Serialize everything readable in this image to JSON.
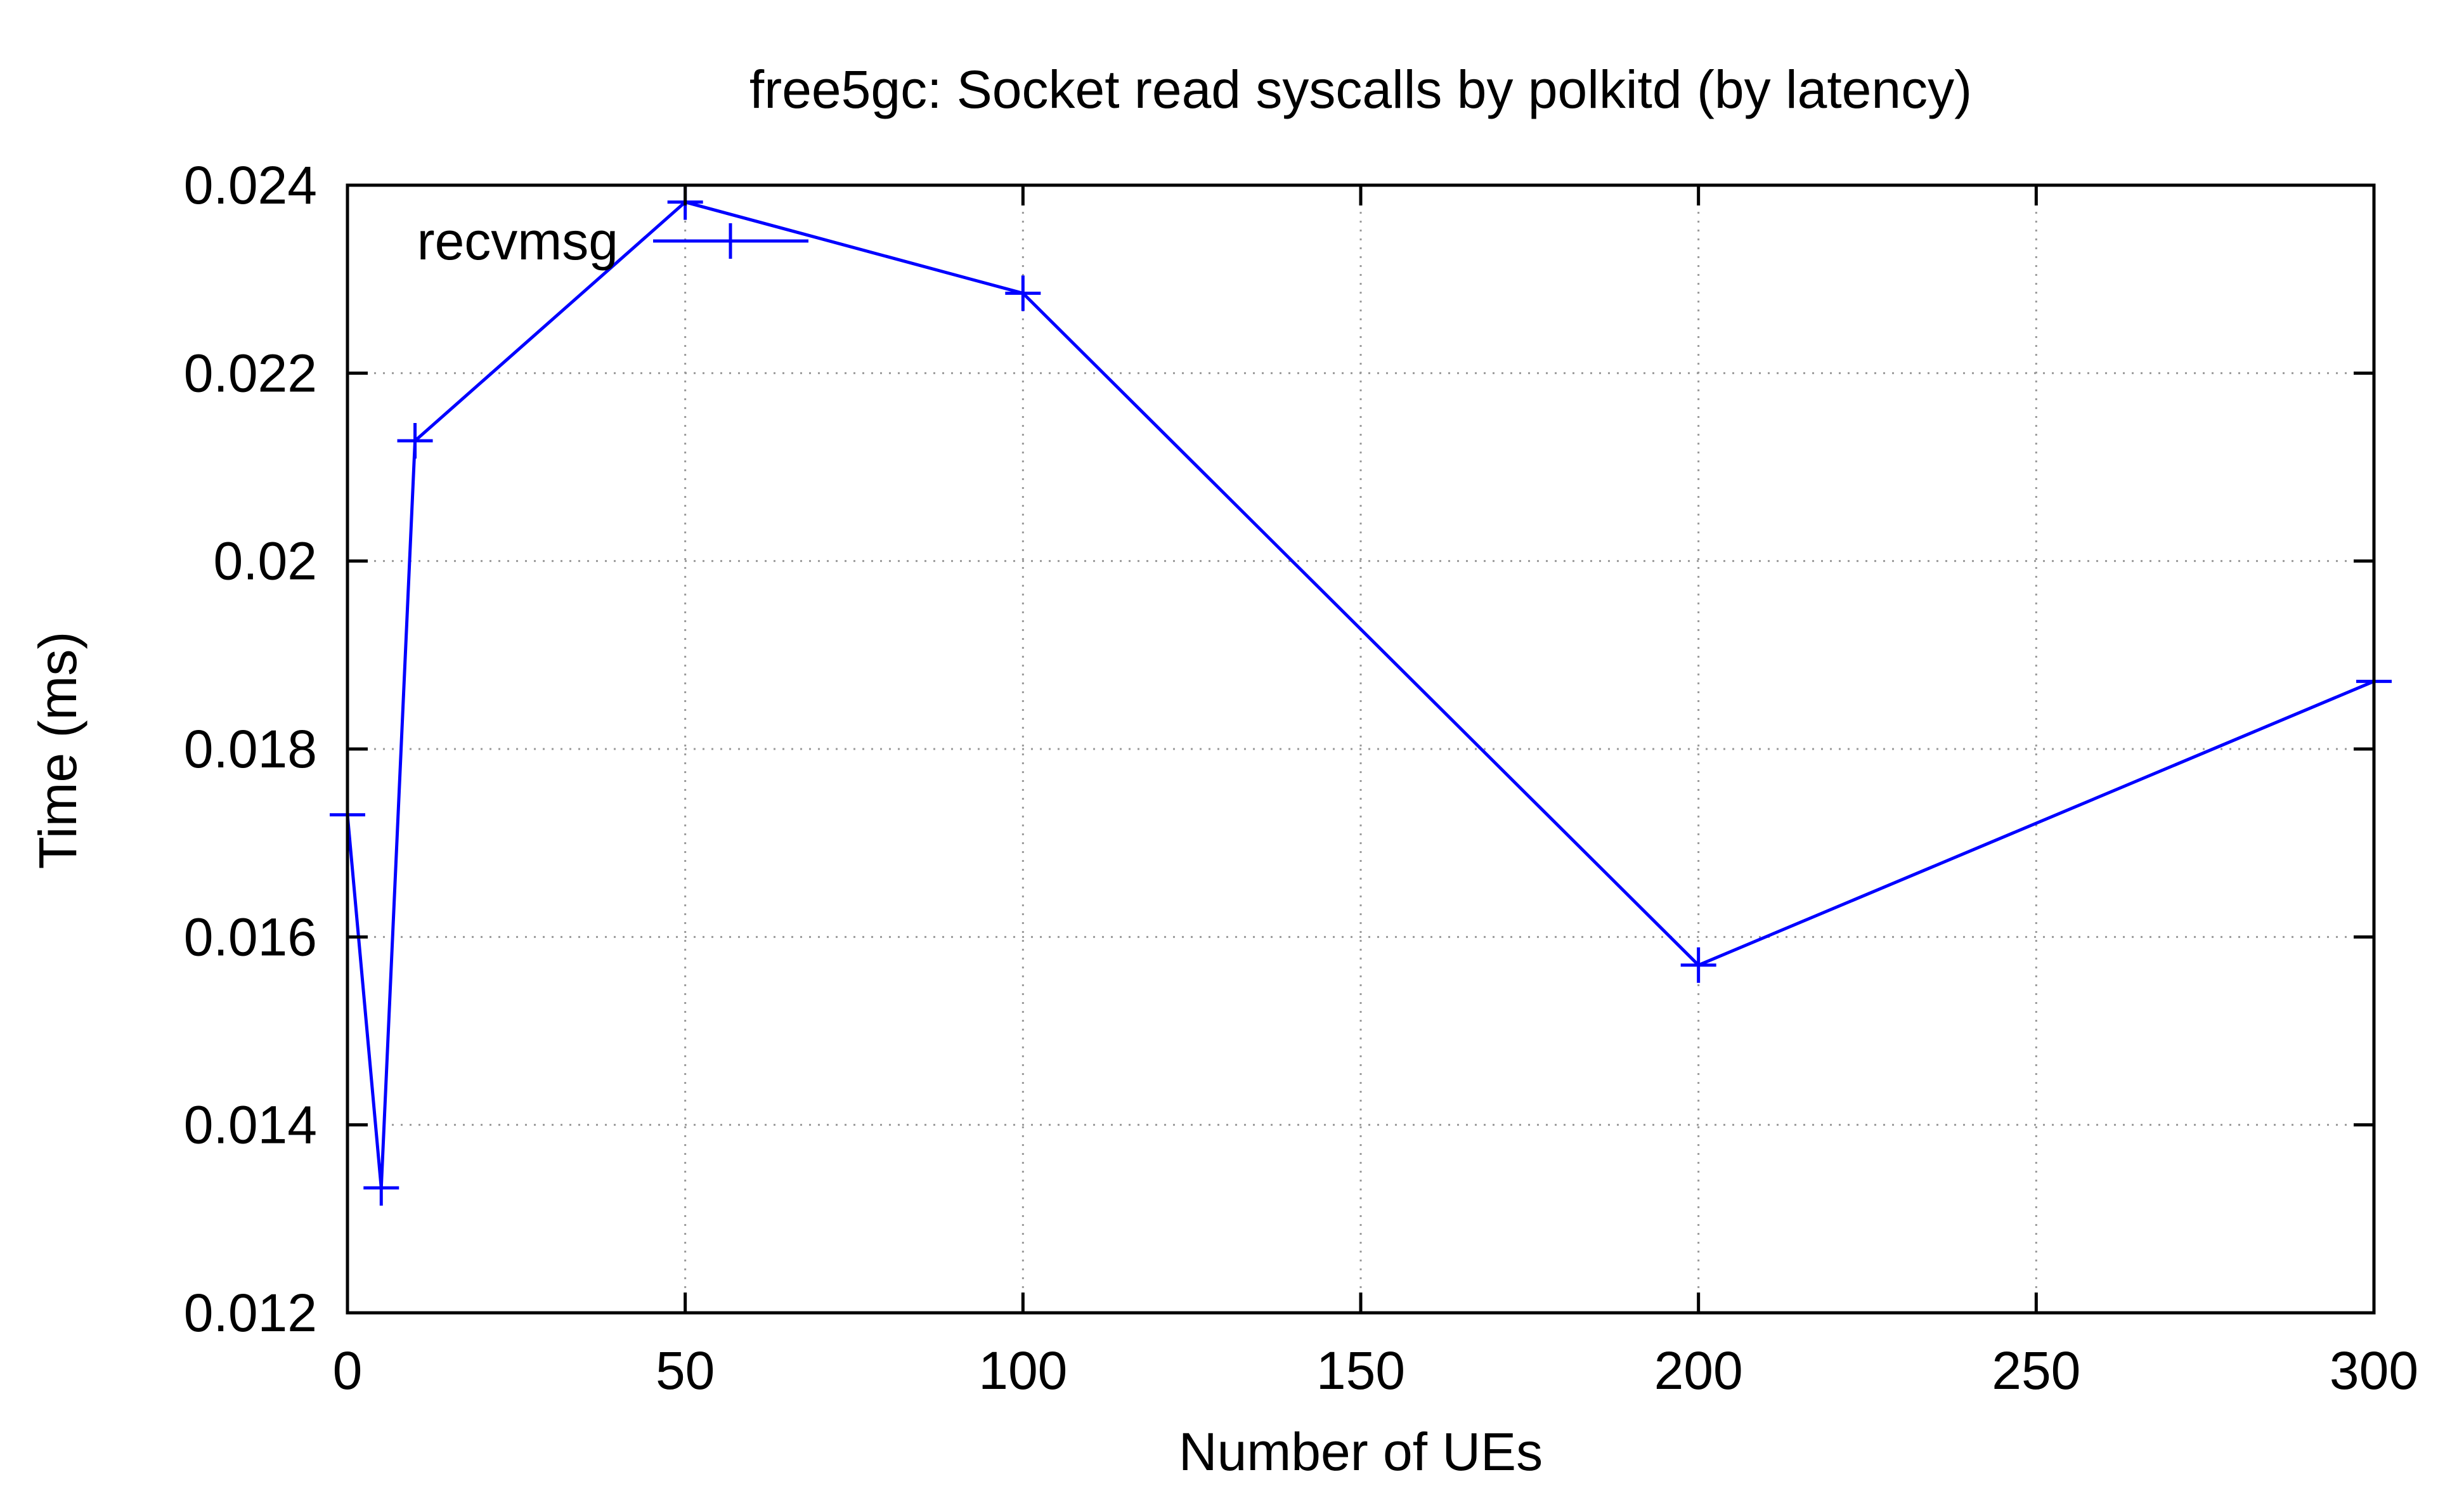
{
  "chart_data": {
    "type": "line",
    "title": "free5gc: Socket read syscalls by polkitd (by latency)",
    "xlabel": "Number of UEs",
    "ylabel": "Time (ms)",
    "xlim": [
      0,
      300
    ],
    "ylim": [
      0.012,
      0.024
    ],
    "xticks": [
      0,
      50,
      100,
      150,
      200,
      250,
      300
    ],
    "xtick_labels": [
      "0",
      "50",
      "100",
      "150",
      "200",
      "250",
      "300"
    ],
    "yticks": [
      0.012,
      0.014,
      0.016,
      0.018,
      0.02,
      0.022,
      0.024
    ],
    "ytick_labels": [
      "0.012",
      "0.014",
      "0.016",
      "0.018",
      "0.02",
      "0.022",
      "0.024"
    ],
    "grid": true,
    "legend": "top-left",
    "colors": {
      "series": "#0000ff",
      "axes": "#000000",
      "grid": "#9a9a9a"
    },
    "series": [
      {
        "name": "recvmsg",
        "marker": "plus",
        "x": [
          0,
          5,
          10,
          50,
          100,
          200,
          300
        ],
        "y": [
          0.0173,
          0.01333,
          0.02128,
          0.02382,
          0.02285,
          0.0157,
          0.01872
        ]
      }
    ]
  }
}
